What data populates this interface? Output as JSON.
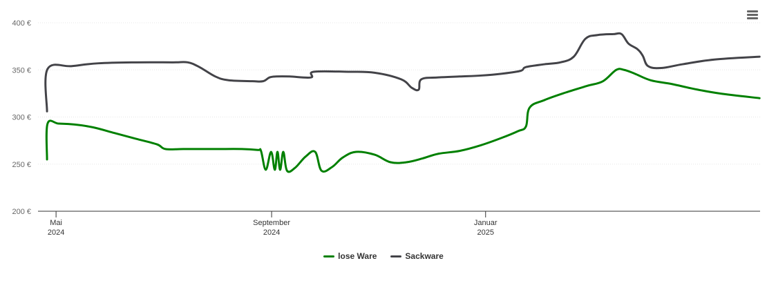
{
  "chart_data": {
    "type": "line",
    "title": "",
    "xlabel": "",
    "ylabel": "",
    "ylim": [
      200,
      400
    ],
    "y_ticks": [
      {
        "value": 200,
        "label": "200 €"
      },
      {
        "value": 250,
        "label": "250 €"
      },
      {
        "value": 300,
        "label": "300 €"
      },
      {
        "value": 350,
        "label": "350 €"
      },
      {
        "value": 400,
        "label": "400 €"
      }
    ],
    "x_range": [
      -0.34,
      13.26
    ],
    "x_unit": "months since 2024-05-01",
    "x_ticks": [
      {
        "value": 0,
        "label": "Mai",
        "year": "2024"
      },
      {
        "value": 4.06,
        "label": "September",
        "year": "2024"
      },
      {
        "value": 8.09,
        "label": "Januar",
        "year": "2025"
      }
    ],
    "series": [
      {
        "name": "lose Ware",
        "color": "#008000",
        "points": [
          [
            -0.17,
            255
          ],
          [
            -0.16,
            293
          ],
          [
            0.05,
            293
          ],
          [
            0.35,
            292
          ],
          [
            0.7,
            289
          ],
          [
            1.1,
            283
          ],
          [
            1.5,
            277
          ],
          [
            1.9,
            271
          ],
          [
            2.06,
            266
          ],
          [
            2.4,
            266
          ],
          [
            3.0,
            266
          ],
          [
            3.5,
            266
          ],
          [
            3.8,
            265
          ],
          [
            3.86,
            264
          ],
          [
            3.95,
            244
          ],
          [
            4.05,
            263
          ],
          [
            4.12,
            244
          ],
          [
            4.17,
            263
          ],
          [
            4.22,
            244
          ],
          [
            4.28,
            263
          ],
          [
            4.35,
            243
          ],
          [
            4.5,
            246
          ],
          [
            4.7,
            258
          ],
          [
            4.88,
            263
          ],
          [
            5.0,
            243
          ],
          [
            5.2,
            247
          ],
          [
            5.4,
            257
          ],
          [
            5.65,
            263
          ],
          [
            6.0,
            260
          ],
          [
            6.3,
            252
          ],
          [
            6.6,
            252
          ],
          [
            6.9,
            256
          ],
          [
            7.2,
            261
          ],
          [
            7.6,
            264
          ],
          [
            8.0,
            270
          ],
          [
            8.4,
            278
          ],
          [
            8.7,
            285
          ],
          [
            8.85,
            290
          ],
          [
            8.92,
            310
          ],
          [
            9.2,
            318
          ],
          [
            9.6,
            326
          ],
          [
            10.0,
            333
          ],
          [
            10.3,
            338
          ],
          [
            10.55,
            350
          ],
          [
            10.7,
            350
          ],
          [
            10.9,
            346
          ],
          [
            11.2,
            339
          ],
          [
            11.6,
            335
          ],
          [
            12.0,
            330
          ],
          [
            12.5,
            325
          ],
          [
            13.25,
            320
          ]
        ]
      },
      {
        "name": "Sackware",
        "color": "#434348",
        "points": [
          [
            -0.17,
            306
          ],
          [
            -0.16,
            351
          ],
          [
            0.3,
            354
          ],
          [
            0.8,
            357
          ],
          [
            1.5,
            358
          ],
          [
            2.2,
            358
          ],
          [
            2.48,
            358
          ],
          [
            2.7,
            353
          ],
          [
            3.0,
            343
          ],
          [
            3.25,
            339
          ],
          [
            3.7,
            338
          ],
          [
            3.9,
            338
          ],
          [
            4.02,
            342
          ],
          [
            4.15,
            343
          ],
          [
            4.4,
            343
          ],
          [
            4.8,
            342
          ],
          [
            4.85,
            348
          ],
          [
            5.5,
            348
          ],
          [
            6.0,
            347
          ],
          [
            6.5,
            340
          ],
          [
            6.7,
            331
          ],
          [
            6.83,
            329
          ],
          [
            6.88,
            340
          ],
          [
            7.2,
            342
          ],
          [
            7.6,
            343
          ],
          [
            8.0,
            344
          ],
          [
            8.4,
            346
          ],
          [
            8.75,
            349
          ],
          [
            8.85,
            353
          ],
          [
            9.2,
            356
          ],
          [
            9.5,
            358
          ],
          [
            9.75,
            364
          ],
          [
            9.97,
            383
          ],
          [
            10.2,
            387
          ],
          [
            10.5,
            388
          ],
          [
            10.65,
            388
          ],
          [
            10.78,
            378
          ],
          [
            10.95,
            372
          ],
          [
            11.05,
            365
          ],
          [
            11.15,
            354
          ],
          [
            11.4,
            352
          ],
          [
            11.8,
            356
          ],
          [
            12.4,
            361
          ],
          [
            13.25,
            364
          ]
        ]
      }
    ],
    "legend_position": "bottom-center"
  }
}
